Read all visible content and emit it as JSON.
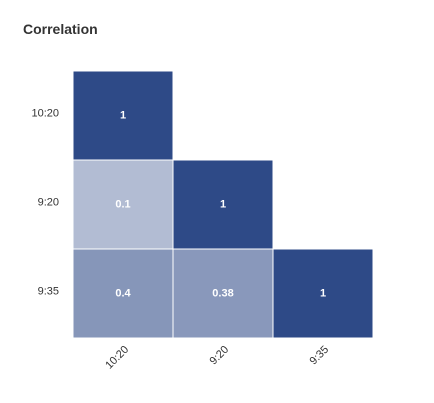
{
  "chart_data": {
    "type": "heatmap",
    "title": "Correlation",
    "x_labels": [
      "10:20",
      "9:20",
      "9:35"
    ],
    "y_labels": [
      "10:20",
      "9:20",
      "9:35"
    ],
    "cells": [
      {
        "row": 0,
        "col": 0,
        "value": 1,
        "label": "1"
      },
      {
        "row": 1,
        "col": 0,
        "value": 0.1,
        "label": "0.1"
      },
      {
        "row": 1,
        "col": 1,
        "value": 1,
        "label": "1"
      },
      {
        "row": 2,
        "col": 0,
        "value": 0.4,
        "label": "0.4"
      },
      {
        "row": 2,
        "col": 1,
        "value": 0.38,
        "label": "0.38"
      },
      {
        "row": 2,
        "col": 2,
        "value": 1,
        "label": "1"
      }
    ],
    "color_scale": {
      "low": "#ffffff",
      "high": "#2e4a87"
    },
    "value_range": [
      -0.43,
      1
    ],
    "cell_border_color": "#ffffff",
    "cell_text_color": "#ffffff",
    "axis_text_color": "#333333",
    "legend": false,
    "grid": false
  }
}
